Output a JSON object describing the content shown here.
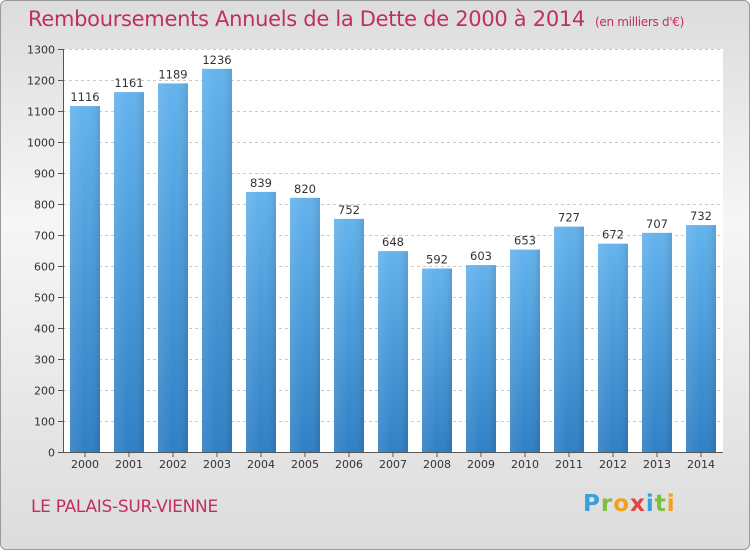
{
  "title": "Remboursements Annuels de la Dette de 2000 à 2014",
  "subtitle": "(en milliers d'€)",
  "city": "LE PALAIS-SUR-VIENNE",
  "logo": "Proxiti",
  "colors": {
    "bar_top": "#63b3ed",
    "bar_bottom": "#2f7fc4",
    "title": "#c0305c"
  },
  "chart_data": {
    "type": "bar",
    "title": "Remboursements Annuels de la Dette de 2000 à 2014",
    "xlabel": "",
    "ylabel": "(en milliers d'€)",
    "ylim": [
      0,
      1300
    ],
    "yticks": [
      0,
      100,
      200,
      300,
      400,
      500,
      600,
      700,
      800,
      900,
      1000,
      1100,
      1200,
      1300
    ],
    "grid": true,
    "categories": [
      "2000",
      "2001",
      "2002",
      "2003",
      "2004",
      "2005",
      "2006",
      "2007",
      "2008",
      "2009",
      "2010",
      "2011",
      "2012",
      "2013",
      "2014"
    ],
    "values": [
      1116,
      1161,
      1189,
      1236,
      839,
      820,
      752,
      648,
      592,
      603,
      653,
      727,
      672,
      707,
      732
    ]
  }
}
